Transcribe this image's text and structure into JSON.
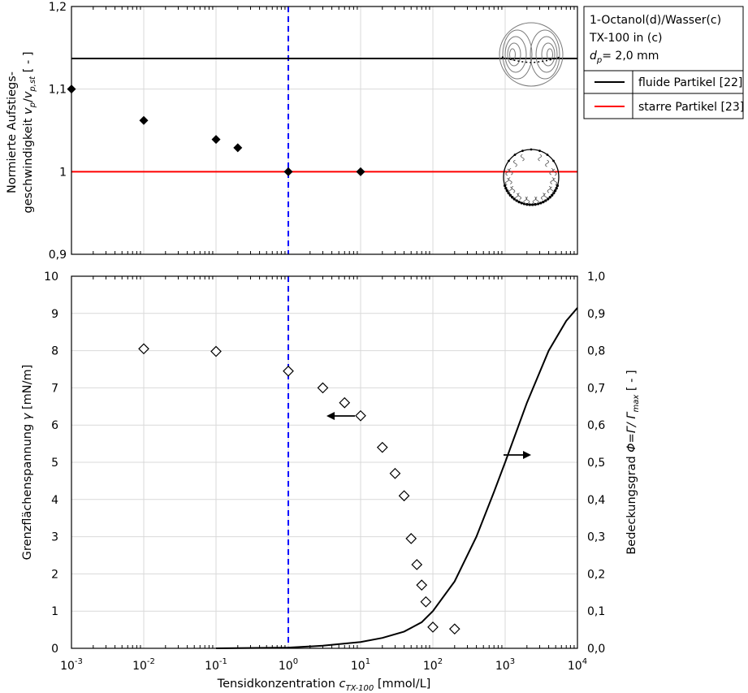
{
  "chart_data": [
    {
      "type": "scatter",
      "panel": "top",
      "ylabel_line1": "Normierte Aufstiegs-",
      "ylabel_line2_prefix": "geschwindigkeit",
      "ylabel_symbol": {
        "v1": "v",
        "s1": "p",
        "slash": "/",
        "v2": "v",
        "s2": "p,st"
      },
      "ylabel_unit": "[ - ]",
      "xscale": "log",
      "xlim": [
        0.001,
        10000
      ],
      "ylim": [
        0.9,
        1.2
      ],
      "yticks": [
        "0,9",
        "1",
        "1,1",
        "1,2"
      ],
      "ytick_values": [
        0.9,
        1.0,
        1.1,
        1.2
      ],
      "grid": true,
      "series": [
        {
          "x": [
            0.001,
            0.01,
            0.1,
            0.2,
            1,
            10
          ],
          "y": [
            1.1,
            1.062,
            1.039,
            1.029,
            1.0,
            1.0
          ],
          "marker": "filled-diamond",
          "color": "#000000"
        }
      ],
      "reference_lines": [
        {
          "y": 1.137,
          "color": "#000000",
          "legend": "fluide Partikel [22]"
        },
        {
          "y": 1.0,
          "color": "#ff0000",
          "legend": "starre Partikel [23]"
        }
      ],
      "vertical_line": {
        "x": 1,
        "color": "#0000ff",
        "style": "dashed"
      },
      "legend": {
        "placement": "right",
        "header_line1": "1-Octanol(d)/Wasser(c)",
        "header_line2": "TX-100 in (c)",
        "header_dp_prefix": "d",
        "header_dp_sub": "p",
        "header_dp_value": "= 2,0 mm",
        "entries": [
          "fluide Partikel [22]",
          "starre Partikel [23]"
        ]
      },
      "insets": [
        "fluid-particle-streamlines-icon",
        "rigid-particle-icon"
      ]
    },
    {
      "type": "scatter",
      "panel": "bottom",
      "xlabel_prefix": "Tensidkonzentration",
      "xlabel_symbol": "c",
      "xlabel_sub": "TX-100",
      "xlabel_unit": "[mmol/L]",
      "xscale": "log",
      "xlim": [
        0.001,
        10000
      ],
      "xtick_base": "10",
      "xtick_exponents": [
        "-3",
        "-2",
        "-1",
        "0",
        "1",
        "2",
        "3",
        "4"
      ],
      "ylabel_left_prefix": "Grenzflächenspannung",
      "ylabel_left_symbol": "γ",
      "ylabel_left_unit": "[mN/m]",
      "ylim_left": [
        0,
        10
      ],
      "yticks_left": [
        "0",
        "1",
        "2",
        "3",
        "4",
        "5",
        "6",
        "7",
        "8",
        "9",
        "10"
      ],
      "ylabel_right_prefix": "Bedeckungsgrad",
      "ylabel_right_symbol": "Φ=Γ/ Γ",
      "ylabel_right_sub": "max",
      "ylabel_right_unit": "[ - ]",
      "ylim_right": [
        0,
        1
      ],
      "yticks_right": [
        "0,0",
        "0,1",
        "0,2",
        "0,3",
        "0,4",
        "0,5",
        "0,6",
        "0,7",
        "0,8",
        "0,9",
        "1,0"
      ],
      "grid": true,
      "series": [
        {
          "axis": "left",
          "marker": "open-diamond",
          "x": [
            0.01,
            0.1,
            1,
            3,
            6,
            10,
            20,
            30,
            40,
            50,
            60,
            70,
            80,
            100,
            200
          ],
          "y": [
            8.05,
            7.98,
            7.45,
            7.0,
            6.6,
            6.25,
            5.4,
            4.7,
            4.1,
            2.95,
            2.25,
            1.7,
            1.25,
            0.57,
            0.52
          ]
        },
        {
          "axis": "right",
          "type": "line",
          "color": "#000000",
          "x": [
            0.1,
            1,
            3,
            10,
            20,
            40,
            70,
            100,
            200,
            400,
            700,
            1000,
            2000,
            4000,
            7000,
            10000
          ],
          "y": [
            0.0,
            0.002,
            0.007,
            0.017,
            0.028,
            0.045,
            0.07,
            0.1,
            0.18,
            0.3,
            0.42,
            0.5,
            0.66,
            0.8,
            0.88,
            0.915
          ]
        }
      ],
      "vertical_line": {
        "x": 1,
        "color": "#0000ff",
        "style": "dashed"
      }
    }
  ]
}
